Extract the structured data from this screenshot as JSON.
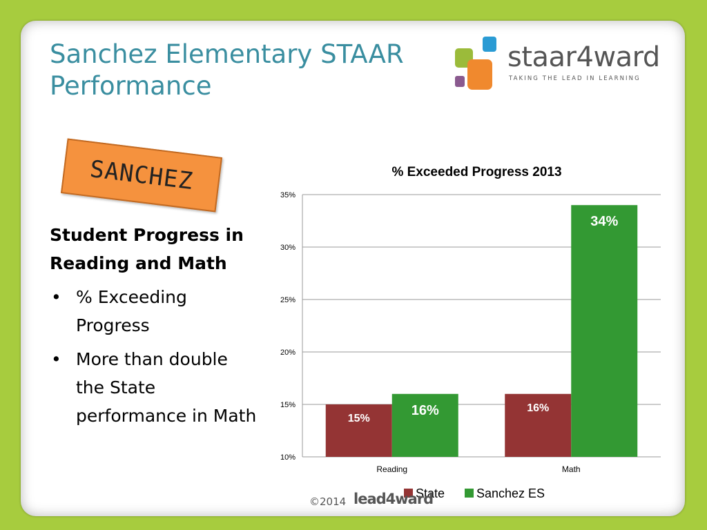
{
  "slide": {
    "title": "Sanchez Elementary STAAR Performance",
    "logo": {
      "name": "staar4ward",
      "tagline": "TAKING THE LEAD IN LEARNING"
    },
    "stamp": "SANCHEZ",
    "side_heading": "Student Progress in Reading and Math",
    "bullets": [
      "% Exceeding Progress",
      "More than double the State performance in Math"
    ],
    "footer": {
      "copyright": "©2014",
      "brand": "lead4ward"
    }
  },
  "colors": {
    "state": "#943434",
    "sanchez": "#339933",
    "title": "#3a8ea0",
    "background": "#a7cc3e"
  },
  "chart_data": {
    "type": "bar",
    "title": "% Exceeded Progress 2013",
    "categories": [
      "Reading",
      "Math"
    ],
    "series": [
      {
        "name": "State",
        "values": [
          15,
          16
        ],
        "labels": [
          "15%",
          "16%"
        ]
      },
      {
        "name": "Sanchez ES",
        "values": [
          16,
          34
        ],
        "labels": [
          "16%",
          "34%"
        ]
      }
    ],
    "ylim": [
      10,
      35
    ],
    "yticks": [
      10,
      15,
      20,
      25,
      30,
      35
    ],
    "ytick_labels": [
      "10%",
      "15%",
      "20%",
      "25%",
      "30%",
      "35%"
    ],
    "grid": true,
    "legend": "bottom"
  }
}
